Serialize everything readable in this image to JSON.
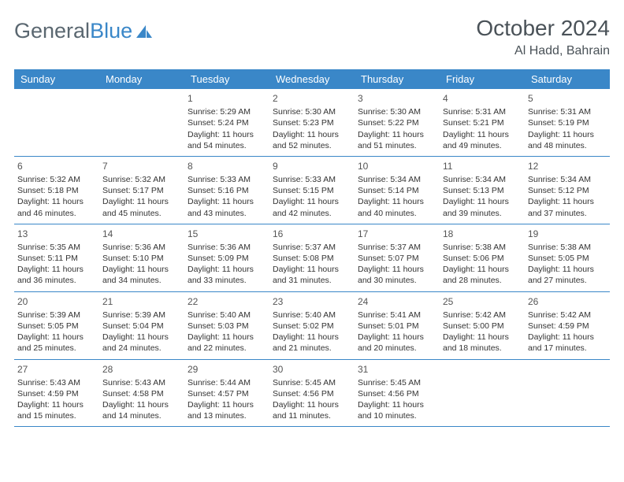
{
  "logo": {
    "text1": "General",
    "text2": "Blue"
  },
  "title": "October 2024",
  "subtitle": "Al Hadd, Bahrain",
  "colors": {
    "header_bg": "#3a87c8",
    "header_text": "#ffffff",
    "border": "#3a87c8",
    "text": "#333333",
    "title_color": "#4a5258"
  },
  "weekdays": [
    "Sunday",
    "Monday",
    "Tuesday",
    "Wednesday",
    "Thursday",
    "Friday",
    "Saturday"
  ],
  "first_weekday_index": 2,
  "days": [
    {
      "n": 1,
      "sr": "5:29 AM",
      "ss": "5:24 PM",
      "dl": "11 hours and 54 minutes."
    },
    {
      "n": 2,
      "sr": "5:30 AM",
      "ss": "5:23 PM",
      "dl": "11 hours and 52 minutes."
    },
    {
      "n": 3,
      "sr": "5:30 AM",
      "ss": "5:22 PM",
      "dl": "11 hours and 51 minutes."
    },
    {
      "n": 4,
      "sr": "5:31 AM",
      "ss": "5:21 PM",
      "dl": "11 hours and 49 minutes."
    },
    {
      "n": 5,
      "sr": "5:31 AM",
      "ss": "5:19 PM",
      "dl": "11 hours and 48 minutes."
    },
    {
      "n": 6,
      "sr": "5:32 AM",
      "ss": "5:18 PM",
      "dl": "11 hours and 46 minutes."
    },
    {
      "n": 7,
      "sr": "5:32 AM",
      "ss": "5:17 PM",
      "dl": "11 hours and 45 minutes."
    },
    {
      "n": 8,
      "sr": "5:33 AM",
      "ss": "5:16 PM",
      "dl": "11 hours and 43 minutes."
    },
    {
      "n": 9,
      "sr": "5:33 AM",
      "ss": "5:15 PM",
      "dl": "11 hours and 42 minutes."
    },
    {
      "n": 10,
      "sr": "5:34 AM",
      "ss": "5:14 PM",
      "dl": "11 hours and 40 minutes."
    },
    {
      "n": 11,
      "sr": "5:34 AM",
      "ss": "5:13 PM",
      "dl": "11 hours and 39 minutes."
    },
    {
      "n": 12,
      "sr": "5:34 AM",
      "ss": "5:12 PM",
      "dl": "11 hours and 37 minutes."
    },
    {
      "n": 13,
      "sr": "5:35 AM",
      "ss": "5:11 PM",
      "dl": "11 hours and 36 minutes."
    },
    {
      "n": 14,
      "sr": "5:36 AM",
      "ss": "5:10 PM",
      "dl": "11 hours and 34 minutes."
    },
    {
      "n": 15,
      "sr": "5:36 AM",
      "ss": "5:09 PM",
      "dl": "11 hours and 33 minutes."
    },
    {
      "n": 16,
      "sr": "5:37 AM",
      "ss": "5:08 PM",
      "dl": "11 hours and 31 minutes."
    },
    {
      "n": 17,
      "sr": "5:37 AM",
      "ss": "5:07 PM",
      "dl": "11 hours and 30 minutes."
    },
    {
      "n": 18,
      "sr": "5:38 AM",
      "ss": "5:06 PM",
      "dl": "11 hours and 28 minutes."
    },
    {
      "n": 19,
      "sr": "5:38 AM",
      "ss": "5:05 PM",
      "dl": "11 hours and 27 minutes."
    },
    {
      "n": 20,
      "sr": "5:39 AM",
      "ss": "5:05 PM",
      "dl": "11 hours and 25 minutes."
    },
    {
      "n": 21,
      "sr": "5:39 AM",
      "ss": "5:04 PM",
      "dl": "11 hours and 24 minutes."
    },
    {
      "n": 22,
      "sr": "5:40 AM",
      "ss": "5:03 PM",
      "dl": "11 hours and 22 minutes."
    },
    {
      "n": 23,
      "sr": "5:40 AM",
      "ss": "5:02 PM",
      "dl": "11 hours and 21 minutes."
    },
    {
      "n": 24,
      "sr": "5:41 AM",
      "ss": "5:01 PM",
      "dl": "11 hours and 20 minutes."
    },
    {
      "n": 25,
      "sr": "5:42 AM",
      "ss": "5:00 PM",
      "dl": "11 hours and 18 minutes."
    },
    {
      "n": 26,
      "sr": "5:42 AM",
      "ss": "4:59 PM",
      "dl": "11 hours and 17 minutes."
    },
    {
      "n": 27,
      "sr": "5:43 AM",
      "ss": "4:59 PM",
      "dl": "11 hours and 15 minutes."
    },
    {
      "n": 28,
      "sr": "5:43 AM",
      "ss": "4:58 PM",
      "dl": "11 hours and 14 minutes."
    },
    {
      "n": 29,
      "sr": "5:44 AM",
      "ss": "4:57 PM",
      "dl": "11 hours and 13 minutes."
    },
    {
      "n": 30,
      "sr": "5:45 AM",
      "ss": "4:56 PM",
      "dl": "11 hours and 11 minutes."
    },
    {
      "n": 31,
      "sr": "5:45 AM",
      "ss": "4:56 PM",
      "dl": "11 hours and 10 minutes."
    }
  ],
  "labels": {
    "sunrise": "Sunrise:",
    "sunset": "Sunset:",
    "daylight": "Daylight:"
  }
}
